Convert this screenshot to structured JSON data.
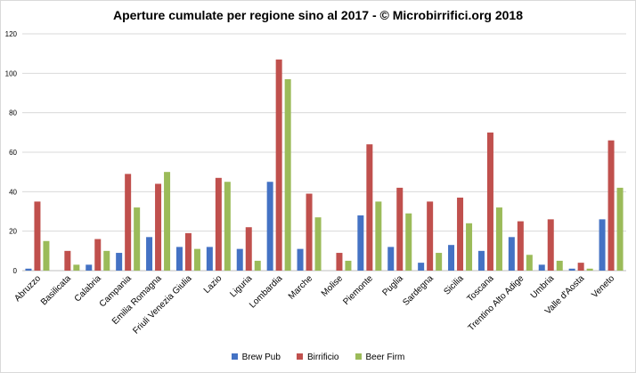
{
  "chart_data": {
    "type": "bar",
    "title": "Aperture cumulate per regione sino al 2017 - © Microbirrifici.org 2018",
    "xlabel": "",
    "ylabel": "",
    "ylim": [
      0,
      120
    ],
    "yticks": [
      0,
      20,
      40,
      60,
      80,
      100,
      120
    ],
    "grid": true,
    "legend_position": "bottom",
    "categories": [
      "Abruzzo",
      "Basilicata",
      "Calabria",
      "Campania",
      "Emilia Romagna",
      "Friuli Venezia Giulia",
      "Lazio",
      "Liguria",
      "Lombardia",
      "Marche",
      "Molise",
      "Piemonte",
      "Puglia",
      "Sardegna",
      "Sicilia",
      "Toscana",
      "Trentino Alto Adige",
      "Umbria",
      "Valle d'Aosta",
      "Veneto"
    ],
    "series": [
      {
        "name": "Brew Pub",
        "color": "#4472c4",
        "values": [
          1,
          0,
          3,
          9,
          17,
          12,
          12,
          11,
          45,
          11,
          0,
          28,
          12,
          4,
          13,
          10,
          17,
          3,
          1,
          26
        ]
      },
      {
        "name": "Birrificio",
        "color": "#c0504d",
        "values": [
          35,
          10,
          16,
          49,
          44,
          19,
          47,
          22,
          107,
          39,
          9,
          64,
          42,
          35,
          37,
          70,
          25,
          26,
          4,
          66
        ]
      },
      {
        "name": "Beer Firm",
        "color": "#9bbb59",
        "values": [
          15,
          3,
          10,
          32,
          50,
          11,
          45,
          5,
          97,
          27,
          5,
          35,
          29,
          9,
          24,
          32,
          8,
          5,
          1,
          42
        ]
      }
    ]
  }
}
